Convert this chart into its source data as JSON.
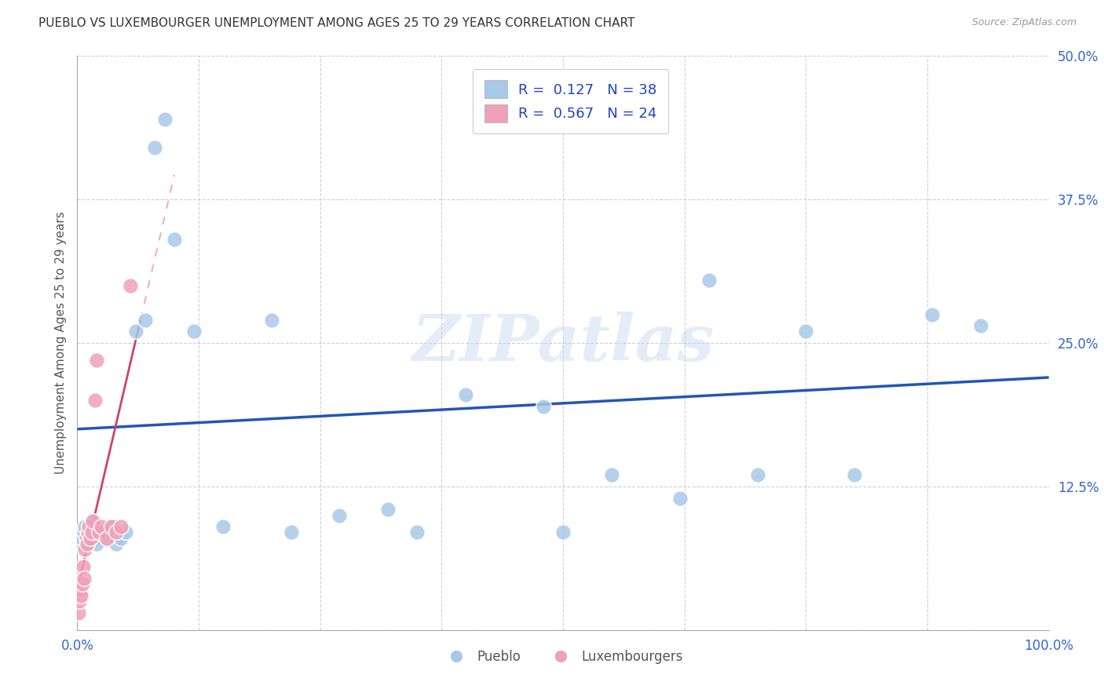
{
  "title": "PUEBLO VS LUXEMBOURGER UNEMPLOYMENT AMONG AGES 25 TO 29 YEARS CORRELATION CHART",
  "source_text": "Source: ZipAtlas.com",
  "ylabel": "Unemployment Among Ages 25 to 29 years",
  "xlim": [
    0,
    100
  ],
  "ylim": [
    0,
    50
  ],
  "xticks": [
    0,
    12.5,
    25.0,
    37.5,
    50.0,
    62.5,
    75.0,
    87.5,
    100.0
  ],
  "xticklabels": [
    "0.0%",
    "",
    "",
    "",
    "",
    "",
    "",
    "",
    "100.0%"
  ],
  "yticks": [
    0,
    12.5,
    25.0,
    37.5,
    50.0
  ],
  "yticklabels": [
    "",
    "12.5%",
    "25.0%",
    "37.5%",
    "50.0%"
  ],
  "pueblo_color": "#A8C8E8",
  "luxembourger_color": "#F0A0B8",
  "pueblo_line_color": "#2255BB",
  "luxembourger_line_color": "#CC4466",
  "luxembourger_dash_color": "#EEB0C0",
  "r_pueblo": "0.127",
  "n_pueblo": "38",
  "r_luxembourger": "0.567",
  "n_luxembourger": "24",
  "watermark": "ZIPatlas",
  "pueblo_x": [
    0.3,
    0.5,
    0.7,
    0.8,
    1.0,
    1.2,
    1.5,
    1.8,
    2.0,
    2.5,
    3.0,
    3.5,
    4.0,
    4.5,
    5.0,
    6.0,
    7.0,
    8.0,
    9.0,
    10.0,
    12.0,
    15.0,
    20.0,
    22.0,
    27.0,
    32.0,
    35.0,
    40.0,
    48.0,
    50.0,
    55.0,
    62.0,
    65.0,
    70.0,
    75.0,
    80.0,
    88.0,
    93.0
  ],
  "pueblo_y": [
    7.5,
    8.0,
    8.5,
    9.0,
    8.0,
    8.5,
    9.5,
    8.0,
    7.5,
    8.5,
    8.0,
    9.0,
    7.5,
    8.0,
    8.5,
    26.0,
    27.0,
    42.0,
    44.5,
    34.0,
    26.0,
    9.0,
    27.0,
    8.5,
    10.0,
    10.5,
    8.5,
    20.5,
    19.5,
    8.5,
    13.5,
    11.5,
    30.5,
    13.5,
    26.0,
    13.5,
    27.5,
    26.5
  ],
  "luxembourger_x": [
    0.1,
    0.2,
    0.3,
    0.4,
    0.5,
    0.6,
    0.7,
    0.8,
    0.9,
    1.0,
    1.1,
    1.2,
    1.3,
    1.5,
    1.6,
    1.8,
    2.0,
    2.2,
    2.5,
    3.0,
    3.5,
    4.0,
    4.5,
    5.5
  ],
  "luxembourger_y": [
    1.5,
    2.5,
    3.5,
    3.0,
    4.0,
    5.5,
    4.5,
    7.0,
    8.0,
    7.5,
    8.5,
    9.0,
    8.0,
    8.5,
    9.5,
    20.0,
    23.5,
    8.5,
    9.0,
    8.0,
    9.0,
    8.5,
    9.0,
    30.0
  ],
  "pueblo_trendline_x": [
    0,
    100
  ],
  "pueblo_trendline_y": [
    17.5,
    22.0
  ],
  "luxembourger_trendline_x": [
    0,
    6.5
  ],
  "luxembourger_trendline_y": [
    3.5,
    27.0
  ]
}
